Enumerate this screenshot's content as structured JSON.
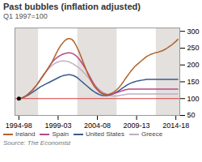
{
  "chart_data": {
    "type": "line",
    "title": "Past bubbles (inflation adjusted)",
    "subtitle": "Q1 1997=100",
    "source": "Source: The Economist",
    "x": [
      0,
      1,
      2,
      3,
      4,
      5,
      6,
      7,
      8,
      9,
      10,
      11,
      12,
      13,
      14,
      15,
      16,
      17,
      18,
      19,
      20,
      21,
      22,
      23,
      24,
      25,
      26,
      27,
      28,
      29,
      30,
      31,
      32,
      33,
      34,
      35,
      36,
      37,
      38,
      39,
      40,
      41,
      42,
      43,
      44,
      45,
      46,
      47,
      48,
      49,
      50,
      51,
      52,
      53,
      54,
      55,
      56,
      57,
      58,
      59,
      60,
      61,
      62,
      63,
      64,
      65,
      66,
      67,
      68,
      69,
      70,
      71,
      72,
      73,
      74,
      75,
      76,
      77,
      78,
      79,
      80,
      81
    ],
    "series": [
      {
        "name": "Ireland",
        "color": "#b5622a",
        "values": [
          100,
          101,
          103,
          106,
          110,
          115,
          120,
          126,
          133,
          140,
          148,
          157,
          165,
          174,
          182,
          191,
          200,
          210,
          222,
          234,
          245,
          255,
          263,
          270,
          275,
          278,
          278,
          276,
          270,
          260,
          248,
          235,
          220,
          205,
          190,
          175,
          162,
          150,
          140,
          132,
          126,
          120,
          116,
          113,
          112,
          112,
          113,
          115,
          118,
          122,
          127,
          133,
          140,
          148,
          157,
          165,
          173,
          181,
          188,
          195,
          200,
          205,
          210,
          215,
          220,
          225,
          228,
          231,
          233,
          235,
          237,
          238,
          240,
          242,
          245,
          248,
          252,
          256,
          260,
          265,
          270,
          276
        ]
      },
      {
        "name": "Spain",
        "color": "#b8478a",
        "values": [
          100,
          101,
          103,
          106,
          110,
          115,
          120,
          126,
          133,
          140,
          148,
          157,
          165,
          174,
          182,
          191,
          200,
          208,
          215,
          220,
          224,
          228,
          231,
          233,
          235,
          236,
          236,
          235,
          232,
          228,
          222,
          215,
          207,
          198,
          188,
          178,
          167,
          156,
          146,
          137,
          129,
          123,
          118,
          115,
          113,
          112,
          112,
          113,
          114,
          116,
          118,
          120,
          122,
          124,
          126,
          127,
          128,
          128,
          128,
          128,
          128,
          128,
          128,
          128,
          128,
          128,
          128,
          128,
          128,
          128,
          128,
          128,
          128,
          128,
          128,
          128,
          128,
          128,
          128,
          128,
          128,
          128
        ]
      },
      {
        "name": "United States",
        "color": "#3a5a8c",
        "values": [
          100,
          101,
          103,
          105,
          108,
          111,
          115,
          119,
          123,
          127,
          131,
          135,
          138,
          141,
          144,
          147,
          150,
          153,
          156,
          159,
          162,
          165,
          167,
          169,
          170,
          171,
          171,
          170,
          168,
          165,
          161,
          156,
          151,
          146,
          141,
          136,
          131,
          126,
          122,
          118,
          115,
          112,
          110,
          109,
          109,
          109,
          110,
          112,
          114,
          117,
          120,
          124,
          128,
          132,
          136,
          140,
          143,
          146,
          148,
          150,
          152,
          153,
          154,
          155,
          156,
          157,
          157,
          157,
          157,
          157,
          157,
          157,
          157,
          157,
          157,
          157,
          157,
          157,
          157,
          157,
          157,
          157
        ]
      },
      {
        "name": "Greece",
        "color": "#c0afc0",
        "values": [
          100,
          101,
          103,
          106,
          110,
          115,
          120,
          126,
          133,
          140,
          148,
          157,
          165,
          173,
          181,
          188,
          194,
          199,
          203,
          207,
          209,
          211,
          212,
          212,
          211,
          210,
          208,
          205,
          202,
          198,
          194,
          189,
          184,
          178,
          172,
          165,
          158,
          151,
          144,
          138,
          132,
          127,
          122,
          118,
          115,
          112,
          110,
          109,
          108,
          108,
          108,
          109,
          110,
          111,
          112,
          113,
          114,
          114,
          114,
          114,
          114,
          114,
          114,
          114,
          114,
          114,
          114,
          114,
          114,
          114,
          114,
          114,
          114,
          114,
          114,
          114,
          114,
          114,
          114,
          114,
          114,
          114
        ]
      }
    ],
    "xlim": [
      -2,
      82
    ],
    "xticks": [
      {
        "value": 0,
        "label": "1994-98"
      },
      {
        "value": 20,
        "label": "1999-03"
      },
      {
        "value": 40,
        "label": "2004-08"
      },
      {
        "value": 60,
        "label": "2009-13"
      },
      {
        "value": 80,
        "label": "2014-18"
      }
    ],
    "ylim": [
      50,
      310
    ],
    "yticks": [
      50,
      100,
      150,
      200,
      250,
      300
    ],
    "reference_line": {
      "y": 100,
      "color": "#d94040"
    },
    "shaded_x_ranges": [
      [
        -2,
        10
      ],
      [
        30,
        50
      ],
      [
        70,
        90
      ]
    ],
    "shade_color": "#d0ccc8",
    "points": [
      {
        "x": 0,
        "y": 100,
        "color": "#000000"
      }
    ],
    "grid": false,
    "legend": "bottom"
  }
}
